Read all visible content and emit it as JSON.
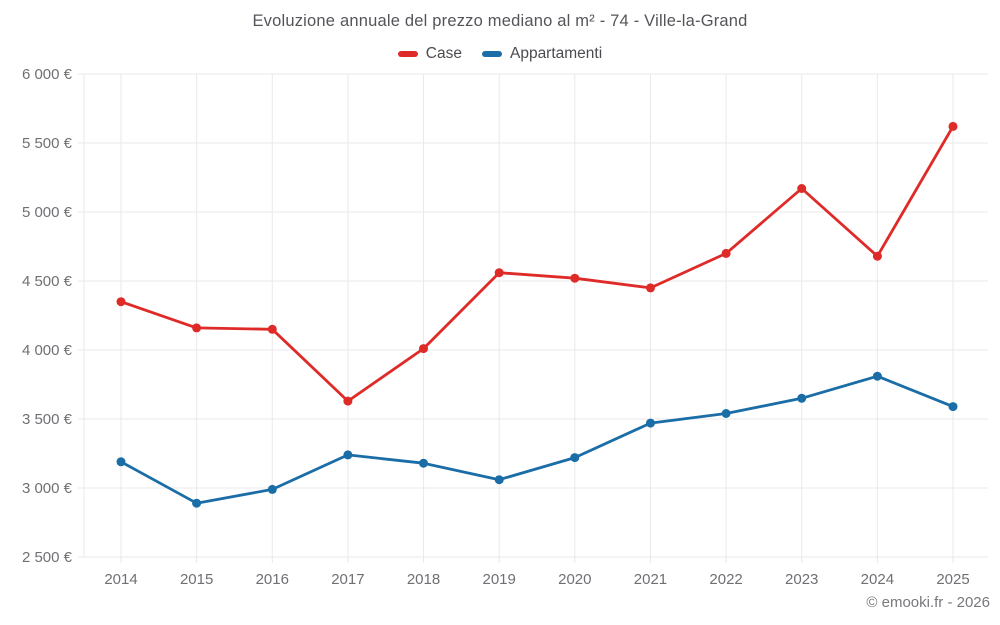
{
  "title": "Evoluzione annuale del prezzo mediano al m² - 74 - Ville-la-Grand",
  "footer": "© emooki.fr - 2026",
  "chart_data": {
    "type": "line",
    "title": "Evoluzione annuale del prezzo mediano al m² - 74 - Ville-la-Grand",
    "xlabel": "",
    "ylabel": "",
    "legend_position": "top",
    "grid": true,
    "background": "#ffffff",
    "ylim": [
      2500,
      6000
    ],
    "categories": [
      "2014",
      "2015",
      "2016",
      "2017",
      "2018",
      "2019",
      "2020",
      "2021",
      "2022",
      "2023",
      "2024",
      "2025"
    ],
    "y_ticks": [
      {
        "value": 2500,
        "label": "2 500 €"
      },
      {
        "value": 3000,
        "label": "3 000 €"
      },
      {
        "value": 3500,
        "label": "3 500 €"
      },
      {
        "value": 4000,
        "label": "4 000 €"
      },
      {
        "value": 4500,
        "label": "4 500 €"
      },
      {
        "value": 5000,
        "label": "5 000 €"
      },
      {
        "value": 5500,
        "label": "5 500 €"
      },
      {
        "value": 6000,
        "label": "6 000 €"
      }
    ],
    "series": [
      {
        "name": "Case",
        "color": "#df2b28",
        "values": [
          4350,
          4160,
          4150,
          3630,
          4010,
          4560,
          4520,
          4450,
          4700,
          5170,
          4680,
          5620
        ]
      },
      {
        "name": "Appartamenti",
        "color": "#1a6da6",
        "values": [
          3190,
          2890,
          2990,
          3240,
          3180,
          3060,
          3220,
          3470,
          3540,
          3650,
          3810,
          3590
        ]
      }
    ]
  }
}
